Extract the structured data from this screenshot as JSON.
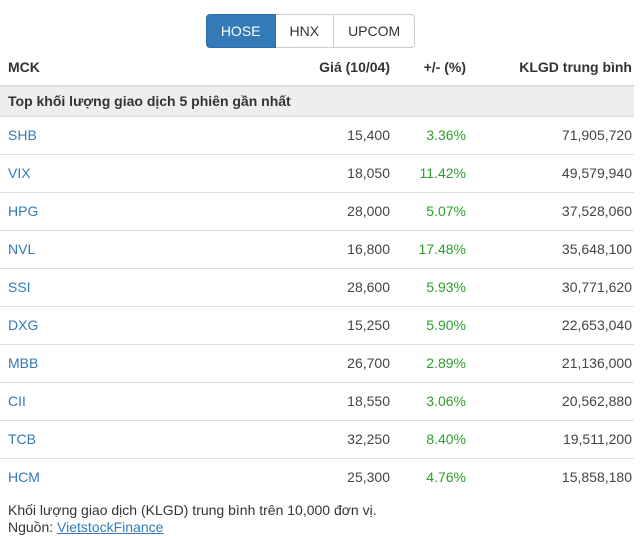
{
  "tabs": [
    {
      "label": "HOSE",
      "active": true
    },
    {
      "label": "HNX",
      "active": false
    },
    {
      "label": "UPCOM",
      "active": false
    }
  ],
  "table": {
    "columns": [
      "MCK",
      "Giá (10/04)",
      "+/- (%)",
      "KLGD trung bình"
    ],
    "group_header": "Top khối lượng giao dịch 5 phiên gần nhất",
    "rows": [
      {
        "ticker": "SHB",
        "price": "15,400",
        "change_pct": "3.36%",
        "avg_volume": "71,905,720"
      },
      {
        "ticker": "VIX",
        "price": "18,050",
        "change_pct": "11.42%",
        "avg_volume": "49,579,940"
      },
      {
        "ticker": "HPG",
        "price": "28,000",
        "change_pct": "5.07%",
        "avg_volume": "37,528,060"
      },
      {
        "ticker": "NVL",
        "price": "16,800",
        "change_pct": "17.48%",
        "avg_volume": "35,648,100"
      },
      {
        "ticker": "SSI",
        "price": "28,600",
        "change_pct": "5.93%",
        "avg_volume": "30,771,620"
      },
      {
        "ticker": "DXG",
        "price": "15,250",
        "change_pct": "5.90%",
        "avg_volume": "22,653,040"
      },
      {
        "ticker": "MBB",
        "price": "26,700",
        "change_pct": "2.89%",
        "avg_volume": "21,136,000"
      },
      {
        "ticker": "CII",
        "price": "18,550",
        "change_pct": "3.06%",
        "avg_volume": "20,562,880"
      },
      {
        "ticker": "TCB",
        "price": "32,250",
        "change_pct": "8.40%",
        "avg_volume": "19,511,200"
      },
      {
        "ticker": "HCM",
        "price": "25,300",
        "change_pct": "4.76%",
        "avg_volume": "15,858,180"
      }
    ]
  },
  "footer": {
    "note": "Khối lượng giao dịch (KLGD) trung bình trên 10,000 đơn vị.",
    "source_label": "Nguồn:",
    "source_link": "VietstockFinance"
  },
  "colors": {
    "accent_blue": "#337ab7",
    "active_tab_border": "#2e6da4",
    "positive_green": "#2e9e2e",
    "group_header_bg": "#eeeeee",
    "row_border": "#dddddd",
    "text": "#333333"
  }
}
